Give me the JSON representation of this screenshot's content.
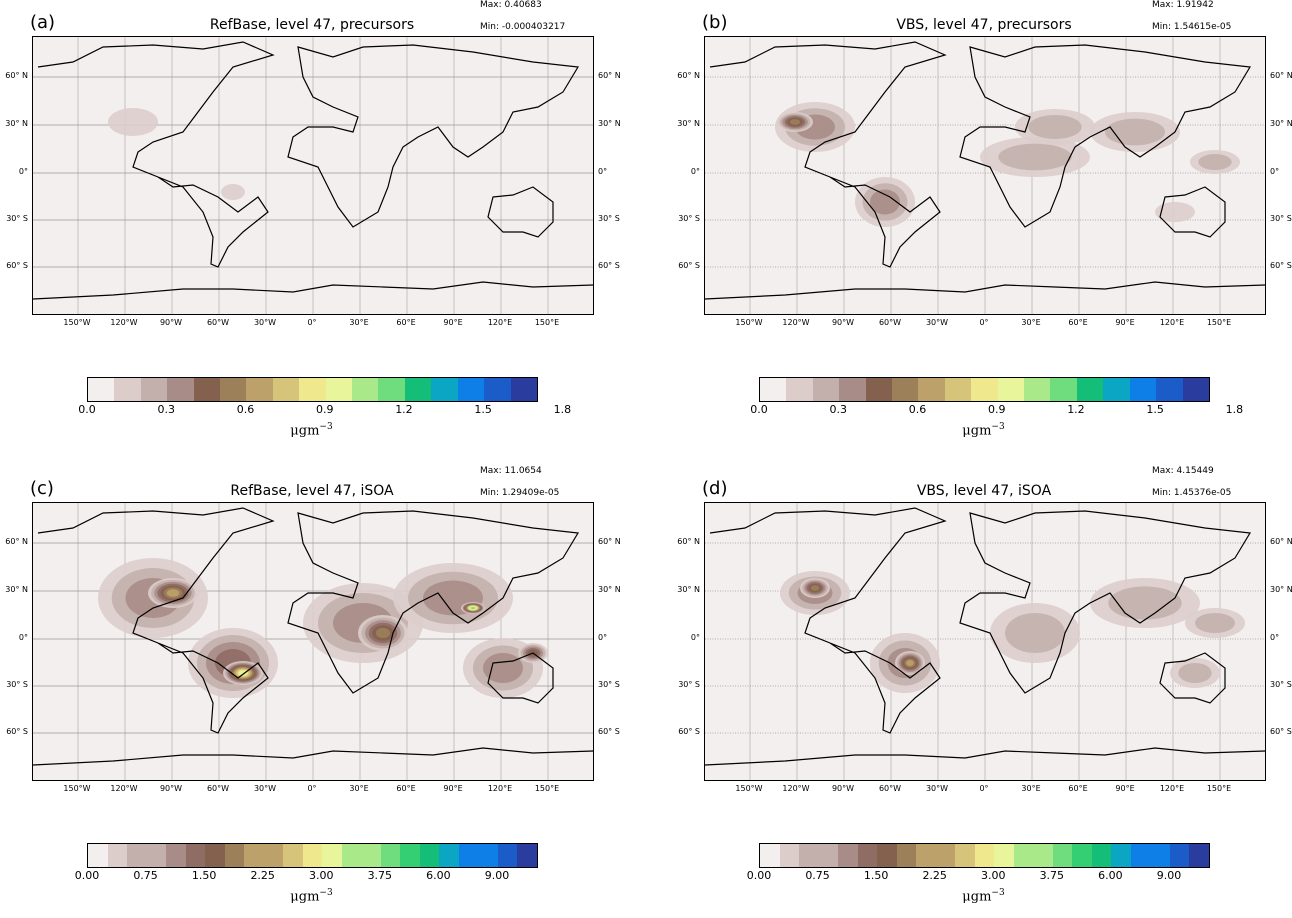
{
  "panels": [
    {
      "label": "(a)",
      "title": "RefBase, level 47, precursors",
      "max_label": "Max:",
      "max_value": "0.40683",
      "min_label": "Min:",
      "min_value": "-0.000403217",
      "colorbar_ticks": [
        "0.0",
        "0.3",
        "0.6",
        "0.9",
        "1.2",
        "1.5",
        "1.8"
      ],
      "units": "μgm",
      "units_exp": "−3",
      "color_count": 17
    },
    {
      "label": "(b)",
      "title": "VBS, level 47, precursors",
      "max_label": "Max:",
      "max_value": "1.91942",
      "min_label": "Min:",
      "min_value": "1.54615e-05",
      "colorbar_ticks": [
        "0.0",
        "0.3",
        "0.6",
        "0.9",
        "1.2",
        "1.5",
        "1.8"
      ],
      "units": "μgm",
      "units_exp": "−3",
      "color_count": 17
    },
    {
      "label": "(c)",
      "title": "RefBase, level 47, iSOA",
      "max_label": "Max:",
      "max_value": "11.0654",
      "min_label": "Min:",
      "min_value": "1.29409e-05",
      "colorbar_ticks": [
        "0.00",
        "0.75",
        "1.50",
        "2.25",
        "3.00",
        "3.75",
        "6.00",
        "9.00"
      ],
      "units": "μgm",
      "units_exp": "−3",
      "color_count": 23
    },
    {
      "label": "(d)",
      "title": "VBS, level 47, iSOA",
      "max_label": "Max:",
      "max_value": "4.15449",
      "min_label": "Min:",
      "min_value": "1.45376e-05",
      "colorbar_ticks": [
        "0.00",
        "0.75",
        "1.50",
        "2.25",
        "3.00",
        "3.75",
        "6.00",
        "9.00"
      ],
      "units": "μgm",
      "units_exp": "−3",
      "color_count": 23
    }
  ],
  "lat_labels_left": [
    "60° N",
    "30° N",
    "0°",
    "30° S",
    "60° S"
  ],
  "lat_labels_right": [
    "60° N",
    "30° N",
    "0°",
    "30° S",
    "60° S"
  ],
  "lon_labels": [
    "150°W",
    "120°W",
    "90°W",
    "60°W",
    "30°W",
    "0°",
    "30°E",
    "60°E",
    "90°E",
    "120°E",
    "150°E"
  ],
  "colormap": [
    "#f3efee",
    "#dccdcb",
    "#c3b0ac",
    "#a88c87",
    "#8f6c64",
    "#84604f",
    "#9c8059",
    "#bca26a",
    "#d7c47b",
    "#efe88c",
    "#e8f59a",
    "#a9e98a",
    "#6fdc7d",
    "#34cf72",
    "#14bd78",
    "#0aa6c4",
    "#0d7fe6",
    "#1c5cc8",
    "#2a3c9e"
  ]
}
